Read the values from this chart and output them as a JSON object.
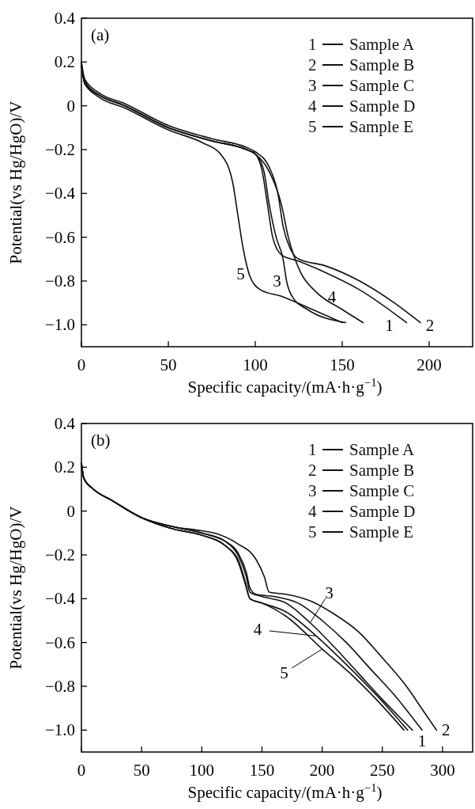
{
  "chart_data": [
    {
      "type": "line",
      "title": "(a)",
      "xlabel": "Specific capacity/(mA·h·g$^{−1}$)",
      "ylabel": "Potential(vs Hg/HgO)/V",
      "xlim": [
        0,
        225
      ],
      "ylim": [
        -1.1,
        0.4
      ],
      "xticks": [
        0,
        50,
        100,
        150,
        200
      ],
      "yticks": [
        {
          "value": 0.4,
          "label": "0.4"
        },
        {
          "value": 0.2,
          "label": "0.2"
        },
        0,
        {
          "value": -0.2,
          "label": "−0.2"
        },
        {
          "value": -0.4,
          "label": "−0.4"
        },
        {
          "value": -0.6,
          "label": "−0.6"
        },
        {
          "value": -0.8,
          "label": "−0.8"
        },
        {
          "value": -1.0,
          "label": "−1.0"
        }
      ],
      "legend": "top right",
      "grid": false,
      "line_style": "solid",
      "marker": "none",
      "series": [
        {
          "name": "Sample A",
          "color": "#111111",
          "x": [
            0,
            2,
            10,
            25,
            50,
            75,
            95,
            100,
            104,
            107,
            110,
            115,
            125,
            140,
            160,
            187
          ],
          "values": [
            0.2,
            0.1,
            0.05,
            0,
            -0.1,
            -0.16,
            -0.2,
            -0.22,
            -0.3,
            -0.45,
            -0.6,
            -0.68,
            -0.71,
            -0.76,
            -0.84,
            -0.99
          ]
        },
        {
          "name": "Sample B",
          "color": "#111111",
          "x": [
            0,
            2,
            10,
            25,
            50,
            75,
            95,
            100,
            108,
            113,
            116,
            120,
            125,
            140,
            160,
            180,
            195
          ],
          "values": [
            0.2,
            0.12,
            0.06,
            0.01,
            -0.09,
            -0.15,
            -0.19,
            -0.21,
            -0.28,
            -0.4,
            -0.55,
            -0.65,
            -0.7,
            -0.73,
            -0.8,
            -0.9,
            -0.99
          ]
        },
        {
          "name": "Sample C",
          "color": "#111111",
          "x": [
            0,
            2,
            10,
            25,
            50,
            75,
            95,
            100,
            105,
            108,
            112,
            116,
            118,
            122,
            130,
            152
          ],
          "values": [
            0.19,
            0.1,
            0.05,
            0,
            -0.1,
            -0.16,
            -0.2,
            -0.22,
            -0.3,
            -0.45,
            -0.6,
            -0.7,
            -0.8,
            -0.88,
            -0.93,
            -0.99
          ]
        },
        {
          "name": "Sample D",
          "color": "#111111",
          "x": [
            0,
            2,
            10,
            25,
            50,
            75,
            95,
            100,
            108,
            115,
            119,
            122,
            126,
            135,
            150,
            162
          ],
          "values": [
            0.18,
            0.11,
            0.05,
            0,
            -0.1,
            -0.16,
            -0.2,
            -0.22,
            -0.3,
            -0.45,
            -0.6,
            -0.68,
            -0.76,
            -0.85,
            -0.93,
            -0.99
          ]
        },
        {
          "name": "Sample E",
          "color": "#111111",
          "x": [
            0,
            2,
            10,
            25,
            50,
            70,
            80,
            87,
            90,
            93,
            97,
            103,
            115,
            130,
            150
          ],
          "values": [
            0.18,
            0.1,
            0.04,
            -0.01,
            -0.11,
            -0.17,
            -0.22,
            -0.35,
            -0.5,
            -0.65,
            -0.78,
            -0.84,
            -0.87,
            -0.92,
            -0.99
          ]
        }
      ],
      "annotations": [
        {
          "text": "1",
          "x": 187,
          "y": -0.99
        },
        {
          "text": "2",
          "x": 195,
          "y": -0.99
        },
        {
          "text": "3",
          "x": 118,
          "y": -0.8
        },
        {
          "text": "4",
          "x": 135,
          "y": -0.85
        },
        {
          "text": "5",
          "x": 97,
          "y": -0.78
        }
      ]
    },
    {
      "type": "line",
      "title": "(b)",
      "xlabel": "Specific capacity/(mA·h·g$^{−1}$)",
      "ylabel": "Potential(vs Hg/HgO)/V",
      "xlim": [
        0,
        325
      ],
      "ylim": [
        -1.1,
        0.4
      ],
      "xticks": [
        0,
        50,
        100,
        150,
        200,
        250,
        300
      ],
      "yticks": [
        {
          "value": 0.4,
          "label": "0.4"
        },
        {
          "value": 0.2,
          "label": "0.2"
        },
        0,
        {
          "value": -0.2,
          "label": "−0.2"
        },
        {
          "value": -0.4,
          "label": "−0.4"
        },
        {
          "value": -0.6,
          "label": "−0.6"
        },
        {
          "value": -0.8,
          "label": "−0.8"
        },
        {
          "value": -1.0,
          "label": "−1.0"
        }
      ],
      "legend": "top right",
      "grid": false,
      "line_style": "solid",
      "marker": "none",
      "series": [
        {
          "name": "Sample A",
          "color": "#111111",
          "x": [
            0,
            2,
            10,
            25,
            50,
            75,
            100,
            120,
            130,
            137,
            140,
            145,
            160,
            180,
            200,
            220,
            240,
            260,
            283
          ],
          "values": [
            0.22,
            0.15,
            0.1,
            0.05,
            -0.03,
            -0.07,
            -0.1,
            -0.14,
            -0.19,
            -0.28,
            -0.35,
            -0.38,
            -0.39,
            -0.42,
            -0.5,
            -0.6,
            -0.72,
            -0.84,
            -1.0
          ]
        },
        {
          "name": "Sample B",
          "color": "#111111",
          "x": [
            0,
            2,
            10,
            25,
            50,
            75,
            100,
            110,
            130,
            145,
            152,
            156,
            170,
            190,
            210,
            230,
            250,
            270,
            285,
            295
          ],
          "values": [
            0.22,
            0.15,
            0.1,
            0.05,
            -0.03,
            -0.07,
            -0.09,
            -0.1,
            -0.15,
            -0.22,
            -0.3,
            -0.37,
            -0.38,
            -0.41,
            -0.47,
            -0.55,
            -0.67,
            -0.8,
            -0.92,
            -1.0
          ]
        },
        {
          "name": "Sample C",
          "color": "#111111",
          "x": [
            0,
            2,
            10,
            25,
            50,
            75,
            100,
            120,
            130,
            137,
            140,
            150,
            170,
            190,
            210,
            230,
            250,
            275
          ],
          "values": [
            0.22,
            0.15,
            0.1,
            0.05,
            -0.03,
            -0.07,
            -0.1,
            -0.14,
            -0.2,
            -0.3,
            -0.37,
            -0.39,
            -0.42,
            -0.51,
            -0.62,
            -0.74,
            -0.86,
            -1.0
          ]
        },
        {
          "name": "Sample D",
          "color": "#111111",
          "x": [
            0,
            2,
            10,
            25,
            50,
            75,
            100,
            120,
            130,
            136,
            140,
            150,
            170,
            195,
            220,
            245,
            271
          ],
          "values": [
            0.22,
            0.15,
            0.1,
            0.05,
            -0.03,
            -0.08,
            -0.11,
            -0.16,
            -0.22,
            -0.32,
            -0.4,
            -0.42,
            -0.46,
            -0.57,
            -0.7,
            -0.84,
            -1.0
          ]
        },
        {
          "name": "Sample E",
          "color": "#111111",
          "x": [
            0,
            2,
            10,
            25,
            50,
            75,
            100,
            120,
            130,
            136,
            140,
            150,
            170,
            200,
            225,
            245,
            268
          ],
          "values": [
            0.22,
            0.15,
            0.1,
            0.05,
            -0.03,
            -0.08,
            -0.11,
            -0.16,
            -0.23,
            -0.33,
            -0.4,
            -0.42,
            -0.48,
            -0.63,
            -0.75,
            -0.86,
            -1.0
          ]
        }
      ],
      "annotations": [
        {
          "text": "1",
          "x": 283,
          "y": -1.0
        },
        {
          "text": "2",
          "x": 295,
          "y": -1.0
        },
        {
          "text": "3",
          "x": 190,
          "y": -0.51
        },
        {
          "text": "4",
          "x": 195,
          "y": -0.57
        },
        {
          "text": "5",
          "x": 200,
          "y": -0.63
        }
      ]
    }
  ]
}
